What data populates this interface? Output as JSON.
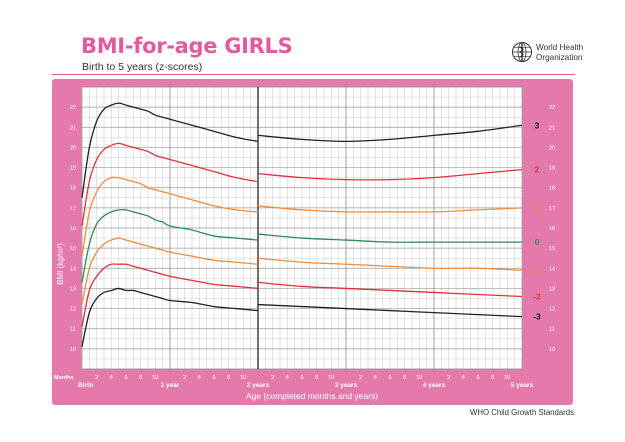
{
  "header": {
    "title": "BMI-for-age GIRLS",
    "subtitle": "Birth to 5 years (z-scores)",
    "org_line1": "World Health",
    "org_line2": "Organization",
    "footer": "WHO Child Growth Standards"
  },
  "colors": {
    "frame": "#e47aab",
    "title": "#e35a9f",
    "grid": "#9a9a9a",
    "grid_minor": "#c8c8c8",
    "plot_bg": "#ffffff"
  },
  "chart_data": {
    "type": "line",
    "title": "BMI-for-age GIRLS",
    "subtitle": "Birth to 5 years (z-scores)",
    "xlabel": "Age (completed months and years)",
    "ylabel": "BMI (kg/m²)",
    "xlim": [
      0,
      60
    ],
    "ylim": [
      9,
      23
    ],
    "grid": true,
    "months_label": "Months",
    "x_ticks": [
      {
        "x": 0,
        "label": "Birth",
        "bold": true
      },
      {
        "x": 2,
        "label": "2",
        "bold": false
      },
      {
        "x": 4,
        "label": "4",
        "bold": false
      },
      {
        "x": 6,
        "label": "6",
        "bold": false
      },
      {
        "x": 8,
        "label": "8",
        "bold": false
      },
      {
        "x": 10,
        "label": "10",
        "bold": false
      },
      {
        "x": 12,
        "label": "1 year",
        "bold": true
      },
      {
        "x": 14,
        "label": "2",
        "bold": false
      },
      {
        "x": 16,
        "label": "4",
        "bold": false
      },
      {
        "x": 18,
        "label": "6",
        "bold": false
      },
      {
        "x": 20,
        "label": "8",
        "bold": false
      },
      {
        "x": 22,
        "label": "10",
        "bold": false
      },
      {
        "x": 24,
        "label": "2 years",
        "bold": true
      },
      {
        "x": 26,
        "label": "2",
        "bold": false
      },
      {
        "x": 28,
        "label": "4",
        "bold": false
      },
      {
        "x": 30,
        "label": "6",
        "bold": false
      },
      {
        "x": 32,
        "label": "8",
        "bold": false
      },
      {
        "x": 34,
        "label": "10",
        "bold": false
      },
      {
        "x": 36,
        "label": "3 years",
        "bold": true
      },
      {
        "x": 38,
        "label": "2",
        "bold": false
      },
      {
        "x": 40,
        "label": "4",
        "bold": false
      },
      {
        "x": 42,
        "label": "6",
        "bold": false
      },
      {
        "x": 44,
        "label": "8",
        "bold": false
      },
      {
        "x": 46,
        "label": "10",
        "bold": false
      },
      {
        "x": 48,
        "label": "4 years",
        "bold": true
      },
      {
        "x": 50,
        "label": "2",
        "bold": false
      },
      {
        "x": 52,
        "label": "4",
        "bold": false
      },
      {
        "x": 54,
        "label": "6",
        "bold": false
      },
      {
        "x": 56,
        "label": "8",
        "bold": false
      },
      {
        "x": 58,
        "label": "10",
        "bold": false
      },
      {
        "x": 60,
        "label": "5 years",
        "bold": true
      }
    ],
    "y_ticks": [
      "10",
      "11",
      "12",
      "13",
      "14",
      "15",
      "16",
      "17",
      "18",
      "19",
      "20",
      "21",
      "22"
    ],
    "x": [
      0,
      1,
      2,
      3,
      4,
      5,
      6,
      7,
      8,
      9,
      10,
      11,
      12,
      15,
      18,
      21,
      24,
      24,
      30,
      36,
      42,
      48,
      54,
      60
    ],
    "series": [
      {
        "label": "3",
        "color": "#222222",
        "values": [
          17.5,
          20.0,
          21.3,
          21.9,
          22.1,
          22.2,
          22.1,
          22.0,
          21.9,
          21.8,
          21.6,
          21.5,
          21.4,
          21.1,
          20.8,
          20.5,
          20.3,
          20.6,
          20.4,
          20.3,
          20.4,
          20.6,
          20.8,
          21.1
        ]
      },
      {
        "label": "2",
        "color": "#e0303e",
        "values": [
          16.1,
          18.3,
          19.4,
          19.9,
          20.1,
          20.2,
          20.1,
          20.0,
          19.9,
          19.8,
          19.6,
          19.5,
          19.4,
          19.1,
          18.8,
          18.5,
          18.3,
          18.7,
          18.5,
          18.4,
          18.4,
          18.5,
          18.7,
          18.9
        ]
      },
      {
        "label": "1",
        "color": "#f08c3a",
        "values": [
          14.6,
          16.8,
          17.8,
          18.3,
          18.5,
          18.5,
          18.4,
          18.3,
          18.2,
          18.0,
          17.9,
          17.8,
          17.7,
          17.4,
          17.1,
          16.9,
          16.8,
          17.1,
          16.9,
          16.8,
          16.8,
          16.8,
          16.9,
          17.0
        ]
      },
      {
        "label": "0",
        "color": "#2e8b57",
        "values": [
          13.3,
          15.2,
          16.2,
          16.6,
          16.8,
          16.9,
          16.9,
          16.8,
          16.7,
          16.6,
          16.4,
          16.3,
          16.1,
          15.9,
          15.6,
          15.5,
          15.4,
          15.7,
          15.5,
          15.4,
          15.3,
          15.3,
          15.3,
          15.3
        ]
      },
      {
        "label": "-1",
        "color": "#f08c3a",
        "values": [
          12.2,
          14.0,
          14.8,
          15.2,
          15.4,
          15.5,
          15.4,
          15.3,
          15.2,
          15.1,
          15.0,
          14.9,
          14.8,
          14.6,
          14.4,
          14.3,
          14.2,
          14.5,
          14.3,
          14.2,
          14.1,
          14.0,
          14.0,
          13.9
        ]
      },
      {
        "label": "-2",
        "color": "#e0303e",
        "values": [
          11.1,
          12.9,
          13.6,
          14.0,
          14.2,
          14.2,
          14.2,
          14.1,
          14.0,
          13.9,
          13.8,
          13.7,
          13.6,
          13.4,
          13.2,
          13.1,
          13.0,
          13.3,
          13.1,
          13.0,
          12.9,
          12.8,
          12.7,
          12.6
        ]
      },
      {
        "label": "-3",
        "color": "#222222",
        "values": [
          10.1,
          11.8,
          12.5,
          12.8,
          12.9,
          13.0,
          12.9,
          12.9,
          12.8,
          12.7,
          12.6,
          12.5,
          12.4,
          12.3,
          12.1,
          12.0,
          11.9,
          12.2,
          12.1,
          12.0,
          11.9,
          11.8,
          11.7,
          11.6
        ]
      }
    ]
  }
}
